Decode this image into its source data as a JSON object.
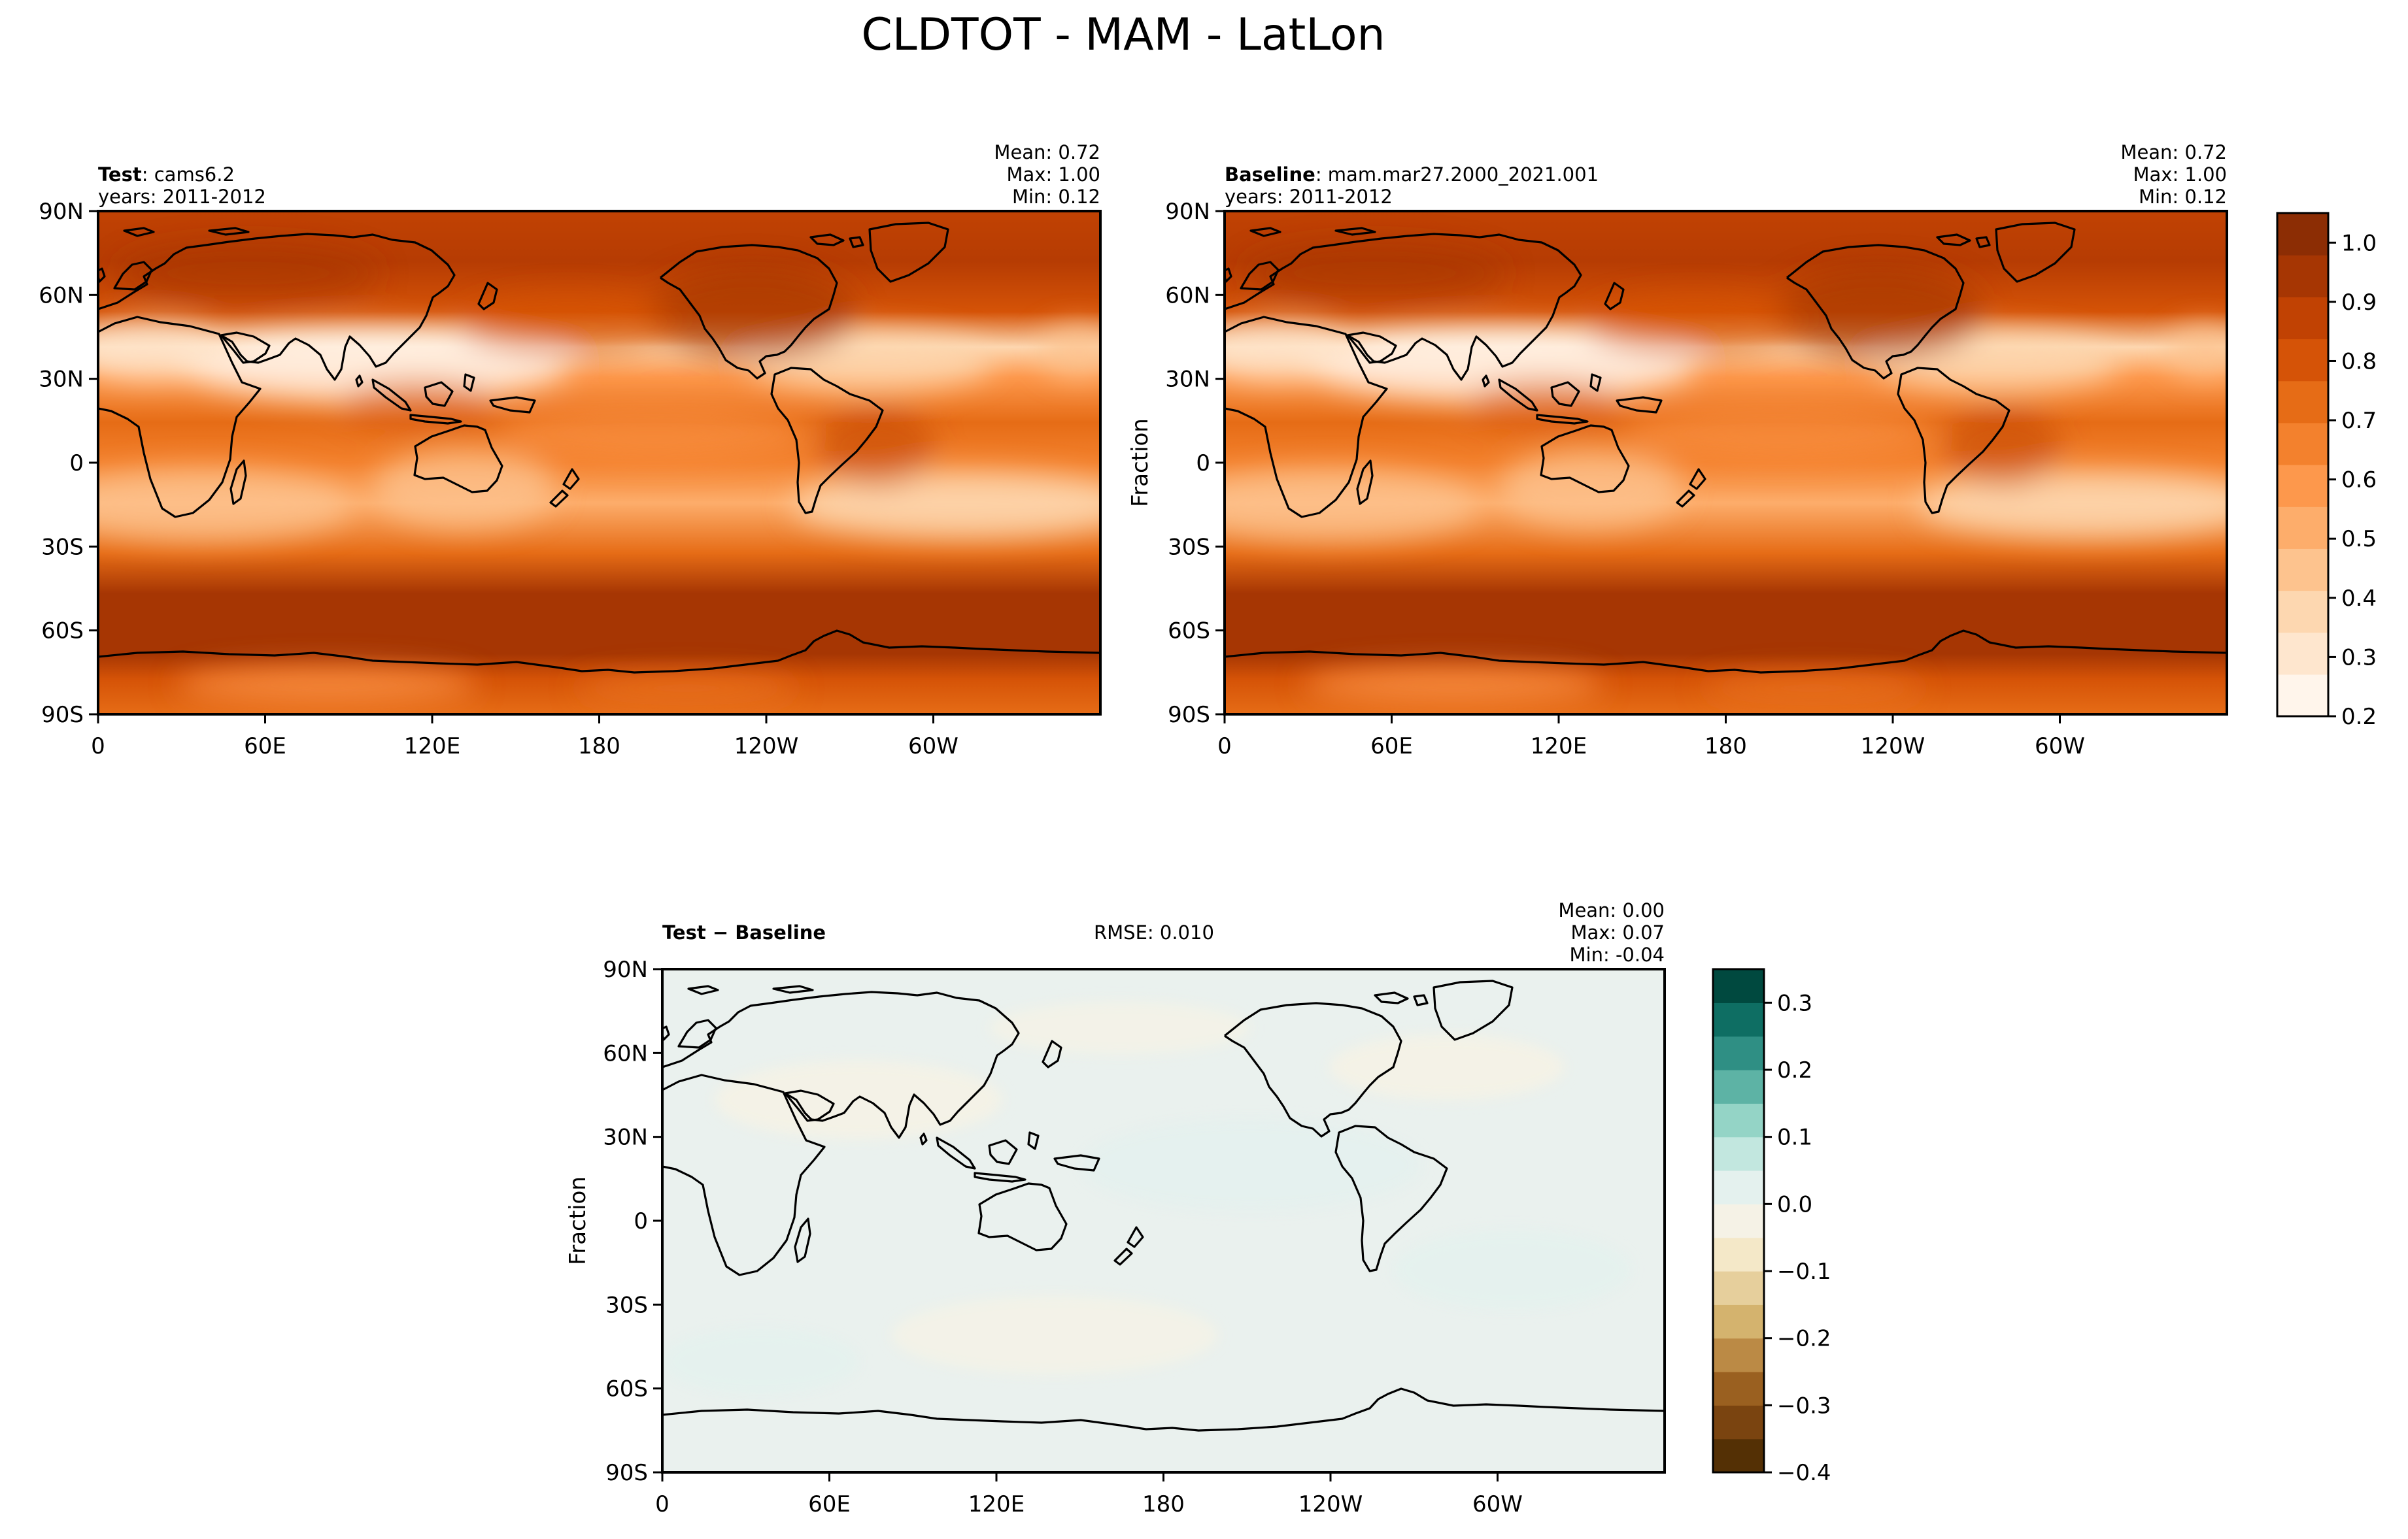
{
  "title": "CLDTOT - MAM - LatLon",
  "colors": {
    "seq_cmap": [
      "#fff5eb",
      "#fee6ce",
      "#fdd7b0",
      "#fdc38e",
      "#fdad6b",
      "#fd984c",
      "#f3812d",
      "#e66c16",
      "#d55307",
      "#c14203",
      "#a63603",
      "#8c2d04"
    ],
    "div_cmap": [
      "#543005",
      "#7a4410",
      "#9a6020",
      "#bb8a45",
      "#d4b36e",
      "#e6cf9c",
      "#f4e8c8",
      "#f5f2e6",
      "#e4f1ee",
      "#c2e7df",
      "#94d4c6",
      "#5db3a5",
      "#2f8f84",
      "#0e6e63",
      "#00493f"
    ],
    "coast": "#000000"
  },
  "chart_data": [
    {
      "type": "heatmap",
      "panel": "test",
      "label_bold": "Test",
      "label_rest": ": cams6.2",
      "years": "years: 2011-2012",
      "stats": {
        "mean": "Mean:  0.72",
        "max": "Max:  1.00",
        "min": "Min:  0.12"
      },
      "xticks": [
        "0",
        "60E",
        "120E",
        "180",
        "120W",
        "60W"
      ],
      "yticks": [
        "90N",
        "60N",
        "30N",
        "0",
        "30S",
        "60S",
        "90S"
      ],
      "ylabel": "",
      "colormap": "Oranges",
      "zlim": [
        0.2,
        1.05
      ]
    },
    {
      "type": "heatmap",
      "panel": "baseline",
      "label_bold": "Baseline",
      "label_rest": ": mam.mar27.2000_2021.001",
      "years": "years: 2011-2012",
      "stats": {
        "mean": "Mean:  0.72",
        "max": "Max:  1.00",
        "min": "Min:  0.12"
      },
      "xticks": [
        "0",
        "60E",
        "120E",
        "180",
        "120W",
        "60W"
      ],
      "yticks": [
        "90N",
        "60N",
        "30N",
        "0",
        "30S",
        "60S",
        "90S"
      ],
      "ylabel": "Fraction",
      "colormap": "Oranges",
      "zlim": [
        0.2,
        1.05
      ],
      "colorbar_ticks": [
        "1.0",
        "0.9",
        "0.8",
        "0.7",
        "0.6",
        "0.5",
        "0.4",
        "0.3",
        "0.2"
      ]
    },
    {
      "type": "heatmap",
      "panel": "difference",
      "label_bold": "Test − Baseline",
      "rmse": "RMSE: 0.010",
      "stats": {
        "mean": "Mean:  0.00",
        "max": "Max:  0.07",
        "min": "Min: -0.04"
      },
      "xticks": [
        "0",
        "60E",
        "120E",
        "180",
        "120W",
        "60W"
      ],
      "yticks": [
        "90N",
        "60N",
        "30N",
        "0",
        "30S",
        "60S",
        "90S"
      ],
      "ylabel": "Fraction",
      "colormap": "BrBG",
      "zlim": [
        -0.4,
        0.35
      ],
      "colorbar_ticks": [
        "0.3",
        "0.2",
        "0.1",
        "0.0",
        "−0.1",
        "−0.2",
        "−0.3",
        "−0.4"
      ]
    }
  ]
}
